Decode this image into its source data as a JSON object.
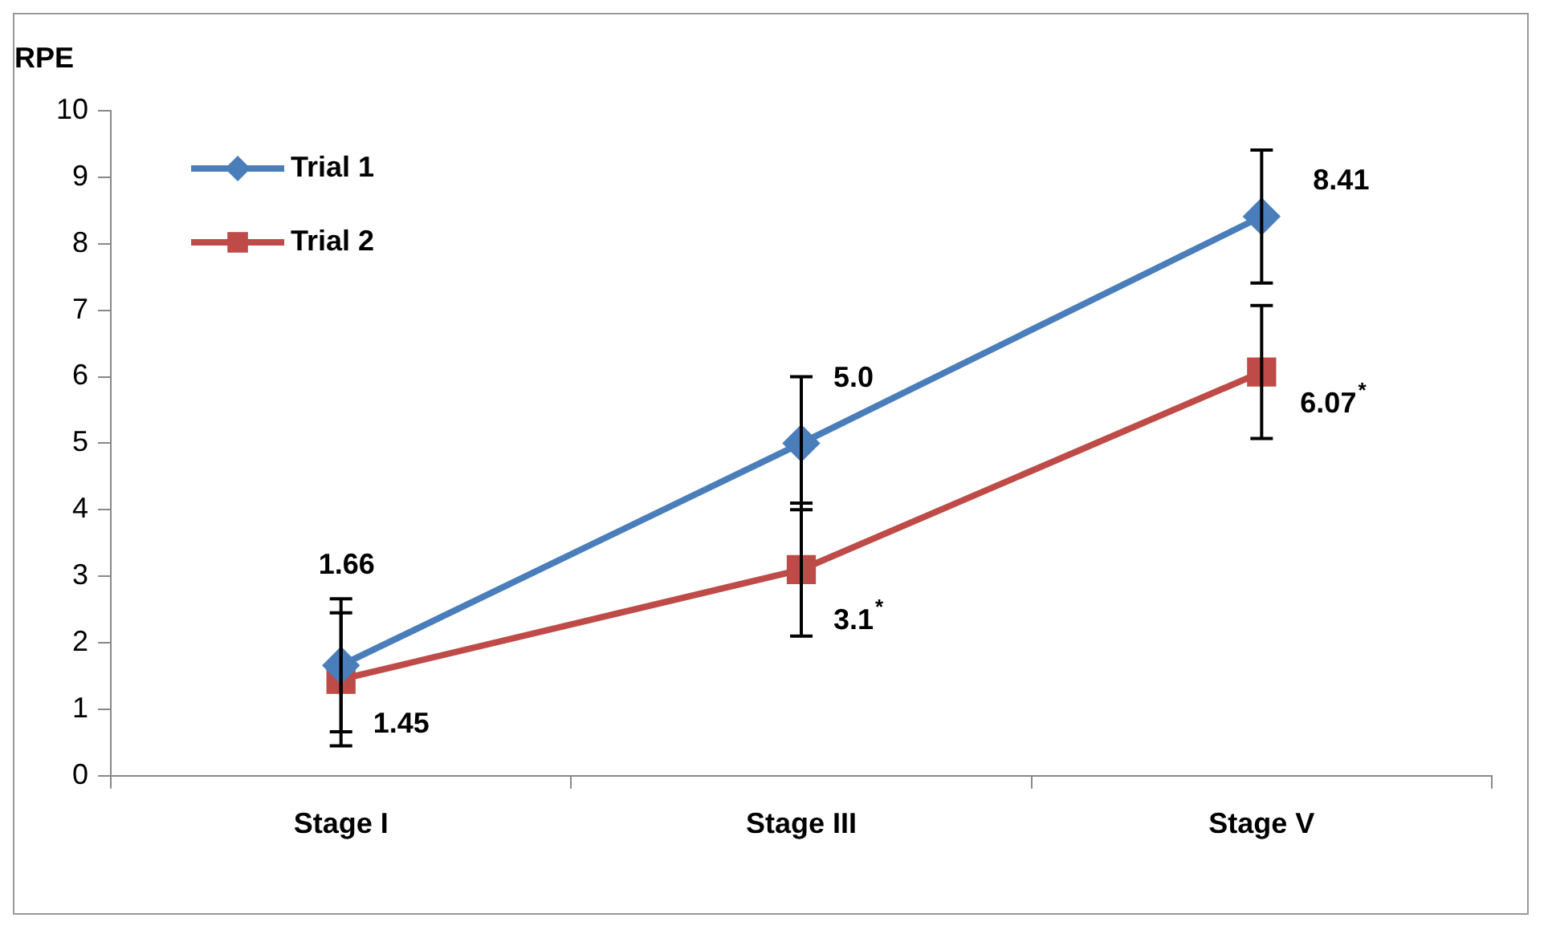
{
  "chart_data": {
    "type": "line",
    "ylabel": "RPE",
    "categories": [
      "Stage I",
      "Stage III",
      "Stage V"
    ],
    "series": [
      {
        "name": "Trial 1",
        "color": "#4a7ebb",
        "marker": "diamond",
        "values": [
          1.66,
          5.0,
          8.41
        ],
        "errors": [
          1,
          1,
          1
        ],
        "value_labels": [
          "1.66",
          "5.0",
          "8.41"
        ]
      },
      {
        "name": "Trial 2",
        "color": "#be4b48",
        "marker": "square",
        "values": [
          1.45,
          3.1,
          6.07
        ],
        "errors": [
          1,
          1,
          1
        ],
        "value_labels": [
          "1.45",
          "3.1$^{*}$",
          "6.07$^{*}$"
        ]
      }
    ],
    "ylim": [
      0,
      10
    ],
    "yticks": [
      0,
      1,
      2,
      3,
      4,
      5,
      6,
      7,
      8,
      9,
      10
    ],
    "grid": false,
    "legend": "top left"
  }
}
